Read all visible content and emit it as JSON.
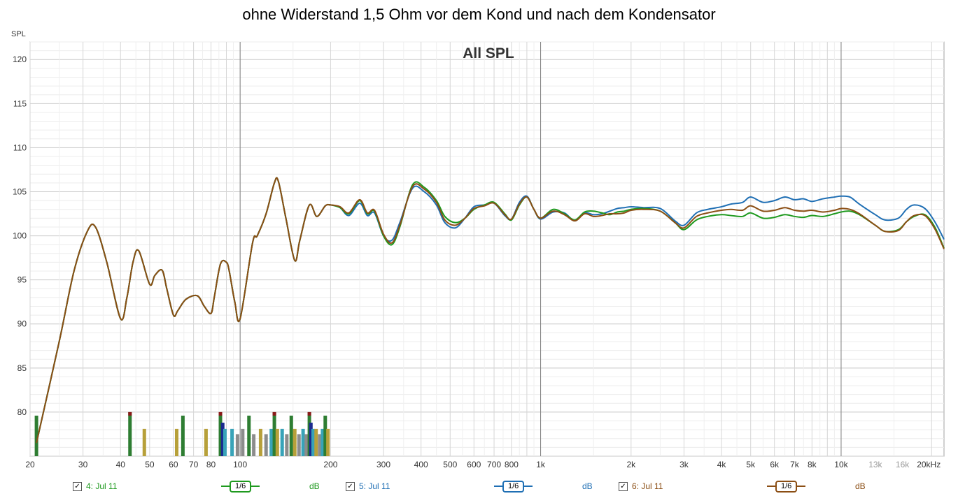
{
  "title": "ohne Widerstand 1,5 Ohm vor dem Kond und nach dem Kondensator",
  "chart_data": {
    "type": "line",
    "subtitle": "All SPL",
    "ylabel": "SPL",
    "xscale": "log",
    "xlim": [
      20,
      22000
    ],
    "ylim": [
      75,
      122
    ],
    "grid": true,
    "y_ticks": [
      80,
      85,
      90,
      95,
      100,
      105,
      110,
      115,
      120
    ],
    "x_ticks": [
      {
        "v": 20,
        "label": "20"
      },
      {
        "v": 30,
        "label": "30"
      },
      {
        "v": 40,
        "label": "40"
      },
      {
        "v": 50,
        "label": "50"
      },
      {
        "v": 60,
        "label": "60"
      },
      {
        "v": 70,
        "label": "70"
      },
      {
        "v": 80,
        "label": "80"
      },
      {
        "v": 100,
        "label": "100"
      },
      {
        "v": 200,
        "label": "200"
      },
      {
        "v": 300,
        "label": "300"
      },
      {
        "v": 400,
        "label": "400"
      },
      {
        "v": 500,
        "label": "500"
      },
      {
        "v": 600,
        "label": "600"
      },
      {
        "v": 700,
        "label": "700"
      },
      {
        "v": 800,
        "label": "800"
      },
      {
        "v": 1000,
        "label": "1k"
      },
      {
        "v": 2000,
        "label": "2k"
      },
      {
        "v": 3000,
        "label": "3k"
      },
      {
        "v": 4000,
        "label": "4k"
      },
      {
        "v": 5000,
        "label": "5k"
      },
      {
        "v": 6000,
        "label": "6k"
      },
      {
        "v": 7000,
        "label": "7k"
      },
      {
        "v": 8000,
        "label": "8k"
      },
      {
        "v": 10000,
        "label": "10k"
      },
      {
        "v": 13000,
        "label": "13k"
      },
      {
        "v": 16000,
        "label": "16k"
      },
      {
        "v": 20000,
        "label": "20kHz"
      }
    ],
    "x": [
      21,
      25,
      28,
      31,
      33,
      36,
      40,
      42,
      44,
      46,
      50,
      52,
      55,
      57,
      60,
      62,
      66,
      72,
      76,
      80,
      82,
      86,
      90,
      92,
      96,
      100,
      110,
      114,
      122,
      130,
      134,
      142,
      152,
      158,
      170,
      180,
      192,
      200,
      215,
      230,
      250,
      265,
      280,
      300,
      320,
      340,
      375,
      410,
      450,
      480,
      520,
      560,
      600,
      650,
      700,
      760,
      800,
      850,
      900,
      950,
      1000,
      1100,
      1200,
      1300,
      1400,
      1500,
      1600,
      1700,
      1800,
      1900,
      2000,
      2200,
      2500,
      2800,
      3000,
      3300,
      3600,
      4000,
      4300,
      4700,
      5000,
      5500,
      6000,
      6500,
      7000,
      7500,
      8000,
      8700,
      9500,
      10000,
      10700,
      11500,
      13000,
      14000,
      15500,
      16500,
      17500,
      19000,
      20500,
      22000
    ],
    "series": [
      {
        "name": "4: Jul 11",
        "color": "#1f9a1f",
        "values": [
          76.5,
          88,
          96,
          100.5,
          101,
          97,
          90.6,
          93,
          97,
          98.3,
          94.5,
          95.5,
          96.1,
          94,
          91,
          91.5,
          92.8,
          93.2,
          92,
          91.2,
          93,
          96.8,
          97,
          96,
          92.5,
          90.6,
          99.2,
          100,
          102.5,
          106,
          106.2,
          102,
          97.2,
          99.5,
          103.5,
          102.2,
          103.4,
          103.5,
          103.2,
          102.5,
          104,
          102.5,
          102.8,
          100,
          99,
          101,
          105.8,
          105.5,
          104,
          102.2,
          101.5,
          102,
          103,
          103.5,
          103.8,
          102.5,
          101.8,
          103.5,
          104.4,
          103,
          102,
          103,
          102.5,
          101.8,
          102.7,
          102.8,
          102.6,
          102.4,
          102.7,
          102.8,
          103,
          103.1,
          102.8,
          101.5,
          100.7,
          101.8,
          102.2,
          102.4,
          102.3,
          102.2,
          102.6,
          102,
          102.1,
          102.4,
          102.2,
          102.1,
          102.3,
          102.2,
          102.5,
          102.7,
          102.8,
          102.4,
          101.2,
          100.5,
          100.7,
          101.6,
          102.2,
          102.4,
          101,
          98.6
        ]
      },
      {
        "name": "5: Jul 11",
        "color": "#1f6fb4",
        "values": [
          76.5,
          88,
          96,
          100.5,
          101,
          97,
          90.6,
          93,
          97,
          98.3,
          94.5,
          95.5,
          96.1,
          94,
          91,
          91.5,
          92.8,
          93.2,
          92,
          91.2,
          93,
          96.8,
          97,
          96,
          92.5,
          90.6,
          99.2,
          100,
          102.5,
          106,
          106.2,
          102,
          97.2,
          99.5,
          103.5,
          102.2,
          103.4,
          103.5,
          103.2,
          102.3,
          103.7,
          102.3,
          102.6,
          100,
          99.5,
          101.5,
          105.4,
          105,
          103.5,
          101.5,
          100.9,
          102,
          103.3,
          103.5,
          103.7,
          102.3,
          101.9,
          103.8,
          104.5,
          103,
          101.9,
          102.7,
          102.6,
          101.7,
          102.6,
          102.4,
          102.5,
          102.8,
          103.1,
          103.2,
          103.3,
          103.2,
          103.1,
          101.7,
          101.2,
          102.6,
          103,
          103.3,
          103.6,
          103.8,
          104.4,
          103.8,
          104,
          104.4,
          104.1,
          104.2,
          103.9,
          104.2,
          104.4,
          104.5,
          104.4,
          103.6,
          102.4,
          101.8,
          102,
          103,
          103.5,
          103.1,
          101.6,
          99.6
        ]
      },
      {
        "name": "6: Jul 11",
        "color": "#8b4e14",
        "values": [
          76.5,
          88,
          96,
          100.5,
          101,
          97,
          90.6,
          93,
          97,
          98.3,
          94.5,
          95.5,
          96.1,
          94,
          91,
          91.5,
          92.8,
          93.2,
          92,
          91.2,
          93,
          96.8,
          97,
          96,
          92.5,
          90.6,
          99.2,
          100,
          102.5,
          106,
          106.2,
          102,
          97.2,
          99.5,
          103.5,
          102.2,
          103.4,
          103.5,
          103.3,
          102.6,
          104.1,
          102.6,
          102.9,
          100.2,
          99.2,
          101.2,
          105.6,
          105.3,
          103.8,
          101.8,
          101.2,
          102,
          103.1,
          103.4,
          103.7,
          102.4,
          101.9,
          103.6,
          104.4,
          103,
          102,
          102.8,
          102.4,
          101.7,
          102.5,
          102.2,
          102.3,
          102.5,
          102.5,
          102.6,
          102.9,
          103,
          102.8,
          101.5,
          100.9,
          102.2,
          102.6,
          102.9,
          103,
          102.9,
          103.4,
          102.8,
          102.9,
          103.2,
          102.9,
          102.8,
          102.9,
          102.7,
          102.9,
          103.1,
          103,
          102.5,
          101.2,
          100.5,
          100.6,
          101.6,
          102.3,
          102.3,
          100.8,
          98.5
        ]
      }
    ],
    "bars": {
      "baseline": 75,
      "colors": {
        "g": "#2e7d32",
        "y": "#b7a03a",
        "c": "#38a3b8",
        "t": "#8c8c8c",
        "n": "#1b2a8f",
        "r": "#8b1a1a"
      },
      "items": [
        {
          "f": 21,
          "top": 79.6,
          "c": "g"
        },
        {
          "f": 43,
          "top": 80,
          "c": "g",
          "cap": "r"
        },
        {
          "f": 48,
          "top": 78.1,
          "c": "y"
        },
        {
          "f": 61.5,
          "top": 78.1,
          "c": "y"
        },
        {
          "f": 64.5,
          "top": 79.6,
          "c": "g"
        },
        {
          "f": 77,
          "top": 78.1,
          "c": "y"
        },
        {
          "f": 86,
          "top": 80,
          "c": "g",
          "cap": "r"
        },
        {
          "f": 87.5,
          "top": 78.8,
          "c": "n"
        },
        {
          "f": 89,
          "top": 78.1,
          "c": "c"
        },
        {
          "f": 94,
          "top": 78.1,
          "c": "c"
        },
        {
          "f": 98,
          "top": 77.5,
          "c": "t"
        },
        {
          "f": 102,
          "top": 78.1,
          "c": "t"
        },
        {
          "f": 107,
          "top": 79.6,
          "c": "g"
        },
        {
          "f": 111,
          "top": 77.5,
          "c": "t"
        },
        {
          "f": 117,
          "top": 78.1,
          "c": "y"
        },
        {
          "f": 122,
          "top": 77.5,
          "c": "t"
        },
        {
          "f": 127,
          "top": 78.1,
          "c": "c"
        },
        {
          "f": 130,
          "top": 80,
          "c": "g",
          "cap": "r"
        },
        {
          "f": 133,
          "top": 78.1,
          "c": "y"
        },
        {
          "f": 138,
          "top": 78.1,
          "c": "c"
        },
        {
          "f": 143,
          "top": 77.5,
          "c": "t"
        },
        {
          "f": 148,
          "top": 79.6,
          "c": "g"
        },
        {
          "f": 152,
          "top": 78.1,
          "c": "y"
        },
        {
          "f": 157,
          "top": 77.5,
          "c": "t"
        },
        {
          "f": 162,
          "top": 78.1,
          "c": "c"
        },
        {
          "f": 166,
          "top": 77.5,
          "c": "t"
        },
        {
          "f": 170,
          "top": 80,
          "c": "g",
          "cap": "r"
        },
        {
          "f": 172,
          "top": 78.8,
          "c": "n"
        },
        {
          "f": 175,
          "top": 78.1,
          "c": "c"
        },
        {
          "f": 179,
          "top": 78.1,
          "c": "y"
        },
        {
          "f": 184,
          "top": 77.5,
          "c": "t"
        },
        {
          "f": 188,
          "top": 78.1,
          "c": "c"
        },
        {
          "f": 192,
          "top": 79.6,
          "c": "g"
        },
        {
          "f": 196,
          "top": 78.1,
          "c": "y"
        }
      ]
    }
  },
  "legend": [
    {
      "name": "4: Jul 11",
      "check": "✓",
      "smoothing": "1/6",
      "unit": "dB",
      "color": "#1f9a1f"
    },
    {
      "name": "5: Jul 11",
      "check": "✓",
      "smoothing": "1/6",
      "unit": "dB",
      "color": "#1f6fb4"
    },
    {
      "name": "6: Jul 11",
      "check": "✓",
      "smoothing": "1/6",
      "unit": "dB",
      "color": "#8b4e14"
    }
  ]
}
